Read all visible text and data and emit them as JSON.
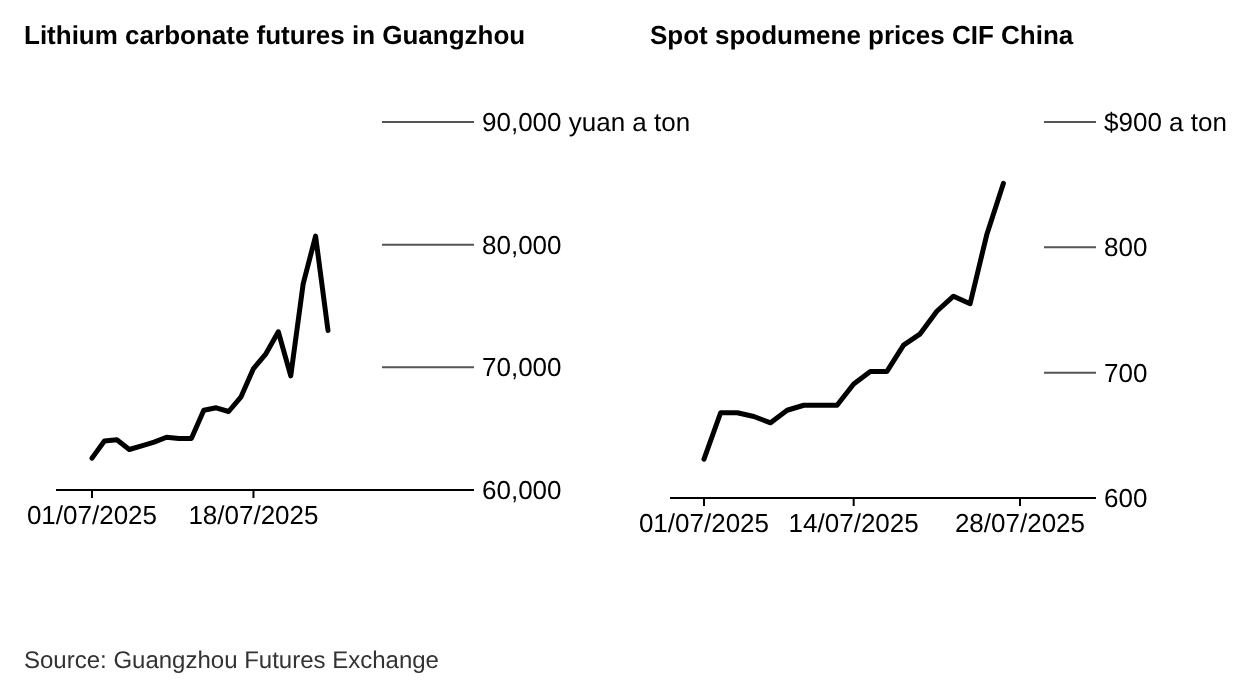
{
  "chart_data": [
    {
      "type": "line",
      "title": "Lithium carbonate futures in Guangzhou",
      "categories": [
        "01/07/2025",
        null,
        null,
        null,
        null,
        null,
        null,
        null,
        null,
        null,
        null,
        null,
        null,
        "18/07/2025",
        null,
        null,
        null,
        null,
        null,
        null
      ],
      "series": [
        {
          "color": "#000000",
          "values": [
            62600,
            64000,
            64100,
            63300,
            63600,
            63900,
            64300,
            64200,
            64200,
            66500,
            66700,
            66400,
            67600,
            69900,
            71100,
            72900,
            69300,
            76800,
            80700,
            73000
          ]
        }
      ],
      "ylim": [
        60000,
        90000
      ],
      "yticks": [
        {
          "value": 60000,
          "label": "60,000"
        },
        {
          "value": 70000,
          "label": "70,000"
        },
        {
          "value": 80000,
          "label": "80,000"
        },
        {
          "value": 90000,
          "label": "90,000 yuan a ton"
        }
      ],
      "annotations": [
        "Source: Guangzhou Futures Exchange"
      ]
    },
    {
      "type": "line",
      "title": "Spot spodumene prices CIF China",
      "categories": [
        "01/07/2025",
        null,
        null,
        null,
        null,
        null,
        null,
        null,
        null,
        "14/07/2025",
        null,
        null,
        null,
        null,
        null,
        null,
        null,
        null,
        null,
        "28/07/2025"
      ],
      "series": [
        {
          "color": "#000000",
          "values": [
            631,
            668,
            668,
            665,
            660,
            670,
            674,
            674,
            674,
            691,
            701,
            701,
            722,
            731,
            749,
            761,
            755,
            810,
            851,
            null
          ]
        }
      ],
      "ylim": [
        600,
        900
      ],
      "yticks": [
        600,
        700,
        800,
        {
          "value": 900,
          "label": "$900 a ton"
        }
      ]
    }
  ]
}
